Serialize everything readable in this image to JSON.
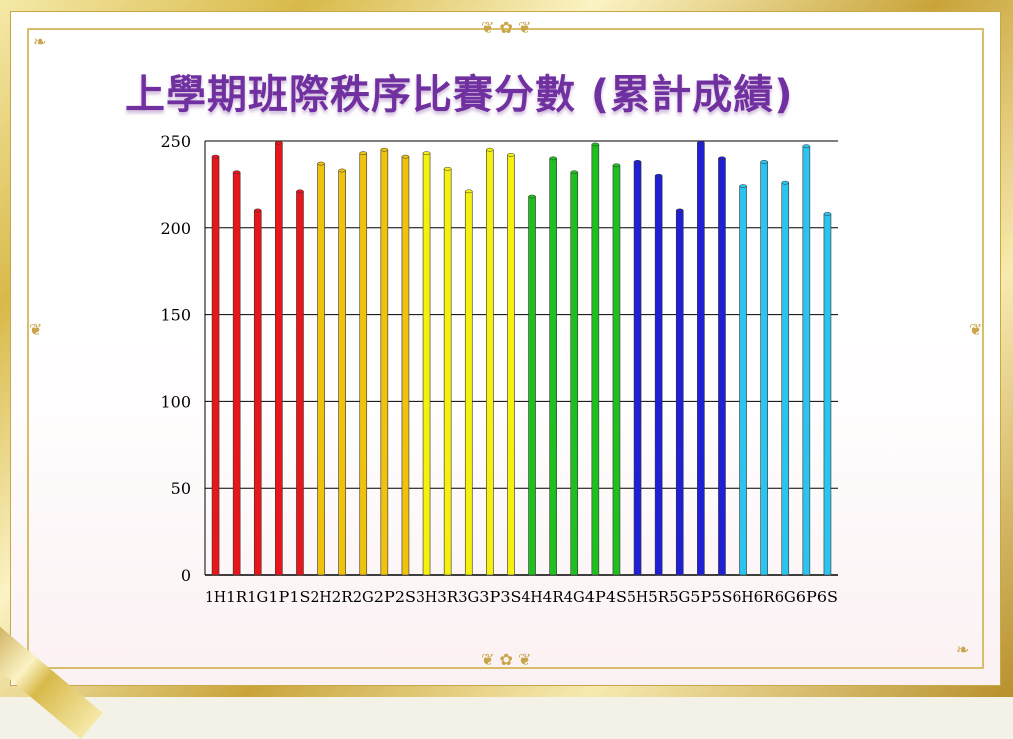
{
  "title": "上學期班際秩序比賽分數 (累計成績)",
  "chart_data": {
    "type": "bar",
    "title": "上學期班際秩序比賽分數 (累計成績)",
    "xlabel": "",
    "ylabel": "",
    "ylim": [
      0,
      250
    ],
    "yticks": [
      "0",
      "50",
      "100",
      "150",
      "200",
      "250"
    ],
    "grid": true,
    "legend": "none",
    "categories": [
      "1H",
      "1R",
      "1G",
      "1P",
      "1S",
      "2H",
      "2R",
      "2G",
      "2P",
      "2S",
      "3H",
      "3R",
      "3G",
      "3P",
      "3S",
      "4H",
      "4R",
      "4G",
      "4P",
      "4S",
      "5H",
      "5R",
      "5G",
      "5P",
      "5S",
      "6H",
      "6R",
      "6G",
      "6P",
      "6S"
    ],
    "values": [
      241,
      232,
      210,
      249,
      221,
      237,
      233,
      243,
      245,
      241,
      243,
      234,
      221,
      245,
      242,
      218,
      240,
      232,
      248,
      236,
      238,
      230,
      210,
      249,
      240,
      224,
      238,
      226,
      247,
      208
    ],
    "colors_by_grade": [
      "#e8161b",
      "#f0c20e",
      "#f5f00f",
      "#1fbf1f",
      "#1f1fd6",
      "#2bc4ee"
    ]
  }
}
